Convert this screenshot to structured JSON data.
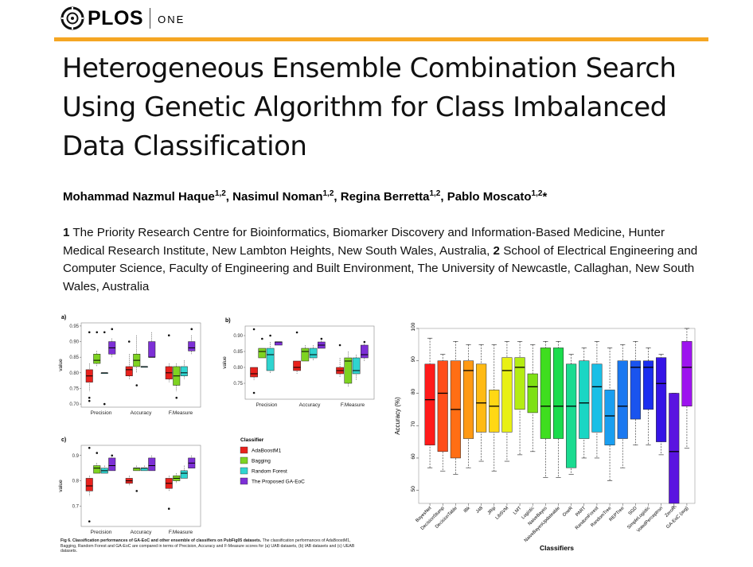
{
  "journal": {
    "brand": "PLOS",
    "sub": "ONE"
  },
  "paper": {
    "title": "Heterogeneous Ensemble Combination Search Using Genetic Algorithm for Class Imbalanced Data Classification",
    "authors": [
      {
        "name": "Mohammad Nazmul Haque",
        "sup": "1,2"
      },
      {
        "name": "Nasimul Noman",
        "sup": "1,2"
      },
      {
        "name": "Regina Berretta",
        "sup": "1,2"
      },
      {
        "name": "Pablo Moscato",
        "sup": "1,2",
        "mark": "*"
      }
    ],
    "affiliation_parts": [
      {
        "num": "1",
        "text": "The Priority Research Centre for Bioinformatics, Biomarker Discovery and Information-Based Medicine, Hunter Medical Research Institute, New Lambton Heights, New South Wales, Australia,"
      },
      {
        "num": "2",
        "text": "School of Electrical Engineering and Computer Science, Faculty of Engineering and Built Environment, The University of Newcastle, Callaghan, New South Wales, Australia"
      }
    ]
  },
  "figure_caption": {
    "bold": "Fig 6. Classification performances of GA-EoC and other ensemble of classifiers on PubFig05 datasets.",
    "text": "The classification performances of AdaBoostM1, Bagging, Random Forest and GA-EoC are compared in terms of Precision, Accuracy and F-Measure scores for (a) UAB datasets, (b) IAB datasets and (c) UEAB datasets."
  },
  "legend": {
    "title": "Classifier",
    "items": [
      {
        "name": "AdaBoostM1",
        "color": "#e8211c"
      },
      {
        "name": "Bagging",
        "color": "#7ed321"
      },
      {
        "name": "Random Forest",
        "color": "#2fd4d0"
      },
      {
        "name": "The Proposed GA-EoC",
        "color": "#7d2fd6"
      }
    ]
  },
  "chart_data": [
    {
      "type": "box",
      "panel": "a)",
      "ylabel": "value",
      "categories": [
        "Precision",
        "Accuracy",
        "F.Measure"
      ],
      "yticks": [
        "0.70",
        "0.75",
        "0.80",
        "0.85",
        "0.90",
        "0.95"
      ],
      "ylim": [
        0.69,
        0.96
      ],
      "series": [
        {
          "name": "AdaBoostM1",
          "boxes": [
            [
              0.74,
              0.77,
              0.79,
              0.81,
              0.83
            ],
            [
              0.78,
              0.79,
              0.81,
              0.82,
              0.86
            ],
            [
              0.77,
              0.78,
              0.8,
              0.82,
              0.83
            ]
          ],
          "outliers": [
            [
              0.72,
              0.71,
              0.93
            ],
            [
              0.9
            ],
            [
              0.92
            ]
          ]
        },
        {
          "name": "Bagging",
          "boxes": [
            [
              0.82,
              0.83,
              0.84,
              0.86,
              0.87
            ],
            [
              0.8,
              0.82,
              0.84,
              0.86,
              0.92
            ],
            [
              0.74,
              0.76,
              0.79,
              0.82,
              0.83
            ]
          ],
          "outliers": [
            [
              0.93
            ],
            [
              0.76
            ],
            [
              0.72
            ]
          ]
        },
        {
          "name": "Random Forest",
          "boxes": [
            [
              0.8,
              0.8,
              0.8,
              0.8,
              0.8
            ],
            [
              0.82,
              0.82,
              0.82,
              0.82,
              0.82
            ],
            [
              0.78,
              0.79,
              0.8,
              0.82,
              0.84
            ]
          ],
          "outliers": [
            [
              0.93,
              0.7
            ],
            [],
            []
          ]
        },
        {
          "name": "The Proposed GA-EoC",
          "boxes": [
            [
              0.85,
              0.86,
              0.88,
              0.9,
              0.91
            ],
            [
              0.85,
              0.85,
              0.85,
              0.9,
              0.93
            ],
            [
              0.86,
              0.87,
              0.88,
              0.9,
              0.92
            ]
          ],
          "outliers": [
            [
              0.94
            ],
            [],
            [
              0.94
            ]
          ]
        }
      ]
    },
    {
      "type": "box",
      "panel": "b)",
      "ylabel": "value",
      "categories": [
        "Precision",
        "Accuracy",
        "F.Measure"
      ],
      "yticks": [
        "0.75",
        "0.80",
        "0.85",
        "0.90"
      ],
      "ylim": [
        0.7,
        0.93
      ],
      "series": [
        {
          "name": "AdaBoostM1",
          "boxes": [
            [
              0.76,
              0.77,
              0.78,
              0.8,
              0.8
            ],
            [
              0.78,
              0.79,
              0.8,
              0.82,
              0.82
            ],
            [
              0.77,
              0.78,
              0.79,
              0.8,
              0.83
            ]
          ],
          "outliers": [
            [
              0.92,
              0.72
            ],
            [
              0.91
            ],
            [
              0.87
            ]
          ]
        },
        {
          "name": "Bagging",
          "boxes": [
            [
              0.83,
              0.83,
              0.85,
              0.86,
              0.86
            ],
            [
              0.82,
              0.82,
              0.85,
              0.86,
              0.87
            ],
            [
              0.74,
              0.75,
              0.82,
              0.83,
              0.85
            ]
          ],
          "outliers": [
            [
              0.89
            ],
            [],
            []
          ]
        },
        {
          "name": "Random Forest",
          "boxes": [
            [
              0.78,
              0.79,
              0.84,
              0.86,
              0.88
            ],
            [
              0.82,
              0.83,
              0.84,
              0.86,
              0.87
            ],
            [
              0.76,
              0.78,
              0.79,
              0.83,
              0.84
            ]
          ],
          "outliers": [
            [
              0.9
            ],
            [],
            []
          ]
        },
        {
          "name": "The Proposed GA-EoC",
          "boxes": [
            [
              0.87,
              0.87,
              0.88,
              0.88,
              0.88
            ],
            [
              0.86,
              0.86,
              0.87,
              0.88,
              0.89
            ],
            [
              0.82,
              0.83,
              0.84,
              0.87,
              0.88
            ]
          ],
          "outliers": [
            [],
            [
              0.89
            ],
            [
              0.88
            ]
          ]
        }
      ]
    },
    {
      "type": "box",
      "panel": "c)",
      "ylabel": "value",
      "categories": [
        "Precision",
        "Accuracy",
        "F.Measure"
      ],
      "yticks": [
        "0.7",
        "0.8",
        "0.9"
      ],
      "ylim": [
        0.62,
        0.94
      ],
      "series": [
        {
          "name": "AdaBoostM1",
          "boxes": [
            [
              0.74,
              0.76,
              0.78,
              0.81,
              0.82
            ],
            [
              0.78,
              0.79,
              0.8,
              0.81,
              0.82
            ],
            [
              0.76,
              0.77,
              0.79,
              0.81,
              0.82
            ]
          ],
          "outliers": [
            [
              0.93,
              0.64
            ],
            [],
            [
              0.69
            ]
          ]
        },
        {
          "name": "Bagging",
          "boxes": [
            [
              0.83,
              0.83,
              0.85,
              0.86,
              0.87
            ],
            [
              0.84,
              0.84,
              0.85,
              0.85,
              0.86
            ],
            [
              0.79,
              0.8,
              0.81,
              0.82,
              0.83
            ]
          ],
          "outliers": [
            [
              0.91
            ],
            [
              0.76
            ],
            []
          ]
        },
        {
          "name": "Random Forest",
          "boxes": [
            [
              0.83,
              0.83,
              0.84,
              0.85,
              0.86
            ],
            [
              0.84,
              0.84,
              0.85,
              0.85,
              0.86
            ],
            [
              0.81,
              0.81,
              0.83,
              0.84,
              0.86
            ]
          ],
          "outliers": [
            [],
            [],
            []
          ]
        },
        {
          "name": "The Proposed GA-EoC",
          "boxes": [
            [
              0.84,
              0.84,
              0.86,
              0.89,
              0.9
            ],
            [
              0.84,
              0.84,
              0.86,
              0.89,
              0.9
            ],
            [
              0.85,
              0.85,
              0.87,
              0.89,
              0.9
            ]
          ],
          "outliers": [
            [
              0.9
            ],
            [],
            []
          ]
        }
      ]
    },
    {
      "type": "box",
      "xlabel": "Classifiers",
      "ylabel": "Accuracy (%)",
      "yticks": [
        "50",
        "60",
        "70",
        "80",
        "90",
        "100"
      ],
      "ylim": [
        46,
        100
      ],
      "categories": [
        "BayesNet",
        "DecisionStump",
        "DecisionTable",
        "IBk",
        "J48",
        "JRip",
        "LibSVM",
        "LMT",
        "Logistic",
        "NaiveBayes",
        "NaiveBayesUpdateable",
        "OneR",
        "PART",
        "RandomForest",
        "RandomTree",
        "REPTree",
        "SGD",
        "SimpleLogistic",
        "VotedPerceptron",
        "ZeroR",
        "GA-EoC (avg)"
      ],
      "colors": [
        "#ff1a1a",
        "#ff4d1a",
        "#ff6e14",
        "#ff9a14",
        "#ffba14",
        "#ffd814",
        "#e8f014",
        "#b4ec14",
        "#7ee014",
        "#3fde1f",
        "#1adc4c",
        "#1adb90",
        "#1ad6c4",
        "#1abfe6",
        "#1a9ef0",
        "#1a78f0",
        "#1a54ee",
        "#1a2ef0",
        "#3514e6",
        "#5a14e0",
        "#9d14ee"
      ],
      "boxes": [
        [
          57,
          64,
          78,
          89,
          97
        ],
        [
          56,
          62,
          80,
          90,
          92
        ],
        [
          55,
          60,
          75,
          90,
          96
        ],
        [
          57,
          66,
          87,
          90,
          95
        ],
        [
          59,
          68,
          77,
          89,
          95
        ],
        [
          56,
          68,
          76,
          81,
          95
        ],
        [
          59,
          68,
          87,
          91,
          96
        ],
        [
          61,
          75,
          88,
          91,
          96
        ],
        [
          62,
          74,
          82,
          86,
          95
        ],
        [
          54,
          66,
          76,
          94,
          96
        ],
        [
          54,
          66,
          76,
          94,
          96
        ],
        [
          55,
          57,
          76,
          89,
          92
        ],
        [
          60,
          66,
          77,
          90,
          94
        ],
        [
          60,
          68,
          82,
          89,
          96
        ],
        [
          53,
          64,
          73,
          81,
          94
        ],
        [
          57,
          66,
          76,
          90,
          95
        ],
        [
          64,
          72,
          88,
          90,
          96
        ],
        [
          64,
          75,
          88,
          90,
          94
        ],
        [
          61,
          65,
          83,
          91,
          92
        ],
        [
          45,
          46,
          62,
          80,
          80
        ],
        [
          63,
          76,
          88,
          96,
          100
        ]
      ]
    }
  ]
}
